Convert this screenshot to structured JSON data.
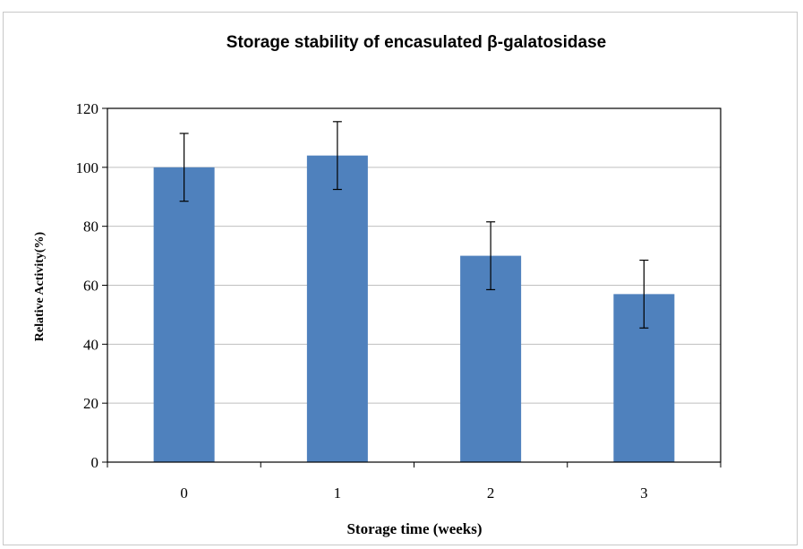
{
  "chart_data": {
    "type": "bar",
    "title": "Storage stability of encasulated β-galatosidase",
    "xlabel": "Storage time (weeks)",
    "ylabel": "Relative Activity(%)",
    "categories": [
      "0",
      "1",
      "2",
      "3"
    ],
    "series": [
      {
        "values": [
          100,
          104,
          70,
          57
        ],
        "error": [
          11.5,
          11.5,
          11.5,
          11.5
        ]
      }
    ],
    "ylim": [
      0,
      120
    ],
    "yticks": [
      0,
      20,
      40,
      60,
      80,
      100,
      120
    ],
    "ytick_labels": [
      "0",
      "20",
      "40",
      "60",
      "80",
      "100",
      "120"
    ],
    "grid": true,
    "legend": "none",
    "colors": {
      "bar": "#4f81bd",
      "grid": "#bfbfbf",
      "axis": "#000000"
    }
  }
}
